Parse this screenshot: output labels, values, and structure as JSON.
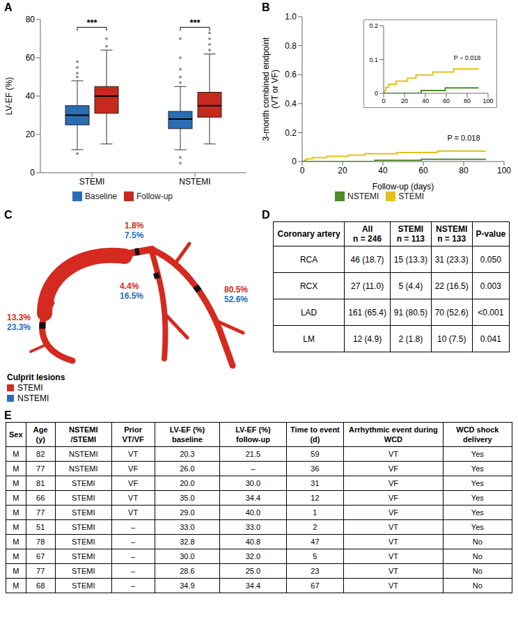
{
  "chart_data": [
    {
      "panel": "A",
      "type": "box",
      "y_label": "LV-EF (%)",
      "categories": [
        "STEMI",
        "NSTEMI"
      ],
      "ylim": [
        0,
        80
      ],
      "yticks": [
        0,
        20,
        40,
        60,
        80
      ],
      "legend": "bottom",
      "significance": [
        "***",
        "***"
      ],
      "series": [
        {
          "name": "Baseline",
          "color": "#2a6db5",
          "boxes": [
            {
              "whisker_low": 12,
              "q1": 25,
              "median": 30,
              "q3": 35,
              "whisker_high": 48,
              "outliers": [
                10,
                50,
                52,
                55,
                58
              ]
            },
            {
              "whisker_low": 12,
              "q1": 23,
              "median": 28,
              "q3": 32,
              "whisker_high": 45,
              "outliers": [
                5,
                8,
                47,
                50,
                54,
                60,
                70
              ]
            }
          ]
        },
        {
          "name": "Follow-up",
          "color": "#c62a1f",
          "boxes": [
            {
              "whisker_low": 15,
              "q1": 31,
              "median": 40,
              "q3": 45,
              "whisker_high": 64,
              "outliers": [
                66,
                70
              ]
            },
            {
              "whisker_low": 15,
              "q1": 29,
              "median": 35,
              "q3": 42,
              "whisker_high": 62,
              "outliers": [
                64,
                67,
                70,
                73
              ]
            }
          ]
        }
      ]
    },
    {
      "panel": "B",
      "type": "line",
      "x_label": "Follow-up (days)",
      "y_label": "3-month combined endpoint (VT or VF)",
      "xlim": [
        0,
        100
      ],
      "xticks": [
        0,
        20,
        40,
        60,
        80,
        100
      ],
      "ylim": [
        0,
        1
      ],
      "yticks": [
        0,
        0.2,
        0.4,
        0.6,
        0.8,
        {
          "value": 1,
          "label": "1.0"
        }
      ],
      "line_style": "step",
      "legend": "bottom",
      "annotation": "P = 0.018",
      "series": [
        {
          "name": "STEMI",
          "color": "#e3c21a",
          "x": [
            0,
            1,
            2,
            5,
            12,
            23,
            31,
            47,
            67,
            91
          ],
          "values": [
            0,
            0.009,
            0.018,
            0.027,
            0.036,
            0.045,
            0.054,
            0.063,
            0.072,
            0.072
          ]
        },
        {
          "name": "NSTEMI",
          "color": "#4e8a2c",
          "x": [
            0,
            36,
            59,
            91
          ],
          "values": [
            0,
            0.008,
            0.016,
            0.016
          ]
        }
      ],
      "inset": {
        "xlim": [
          0,
          100
        ],
        "xticks": [
          0,
          20,
          40,
          60,
          80,
          100
        ],
        "ylim": [
          0,
          0.2
        ],
        "yticks": [
          0,
          0.1,
          0.2
        ],
        "annotation": "P = 0.018"
      }
    }
  ],
  "panel_c": {
    "panel": "C",
    "legend_title": "Culprit lesions",
    "groups": [
      {
        "name": "STEMI",
        "color": "#d42a20"
      },
      {
        "name": "NSTEMI",
        "color": "#2a6db5"
      }
    ],
    "lesions": [
      {
        "stemi": "1.8%",
        "nstemi": "7.5%"
      },
      {
        "stemi": "4.4%",
        "nstemi": "16.5%"
      },
      {
        "stemi": "80.5%",
        "nstemi": "52.6%"
      },
      {
        "stemi": "13.3%",
        "nstemi": "23.3%"
      }
    ]
  },
  "panel_d": {
    "panel": "D",
    "columns": [
      {
        "title": "Coronary artery"
      },
      {
        "title": "All",
        "subtitle": "n = 246"
      },
      {
        "title": "STEMI",
        "subtitle": "n = 113"
      },
      {
        "title": "NSTEMI",
        "subtitle": "n = 133"
      },
      {
        "title": "P-value"
      }
    ],
    "rows": [
      [
        "RCA",
        "46 (18.7)",
        "15 (13.3)",
        "31 (23.3)",
        "0.050"
      ],
      [
        "RCX",
        "27 (11.0)",
        "5 (4.4)",
        "22 (16.5)",
        "0.003"
      ],
      [
        "LAD",
        "161 (65.4)",
        "91 (80.5)",
        "70 (52.6)",
        "<0.001"
      ],
      [
        "LM",
        "12 (4.9)",
        "2 (1.8)",
        "10 (7.5)",
        "0.041"
      ]
    ]
  },
  "panel_e": {
    "panel": "E",
    "columns": [
      "Sex",
      "Age (y)",
      "NSTEMI /STEMI",
      "Prior VT/VF",
      "LV-EF (%) baseline",
      "LV-EF (%) follow-up",
      "Time to event (d)",
      "Arrhythmic event during WCD",
      "WCD shock delivery"
    ],
    "rows": [
      [
        "M",
        "82",
        "NSTEMI",
        "VT",
        "20.3",
        "21.5",
        "59",
        "VT",
        "Yes"
      ],
      [
        "M",
        "77",
        "NSTEMI",
        "VF",
        "26.0",
        "–",
        "36",
        "VF",
        "Yes"
      ],
      [
        "M",
        "81",
        "STEMI",
        "VF",
        "20.0",
        "30.0",
        "31",
        "VF",
        "Yes"
      ],
      [
        "M",
        "66",
        "STEMI",
        "VT",
        "35.0",
        "34.4",
        "12",
        "VF",
        "Yes"
      ],
      [
        "M",
        "77",
        "STEMI",
        "VT",
        "29.0",
        "40.0",
        "1",
        "VF",
        "Yes"
      ],
      [
        "M",
        "51",
        "STEMI",
        "–",
        "33.0",
        "33.0",
        "2",
        "VT",
        "Yes"
      ],
      [
        "M",
        "78",
        "STEMI",
        "–",
        "32.8",
        "40.8",
        "47",
        "VT",
        "No"
      ],
      [
        "M",
        "67",
        "STEMI",
        "–",
        "30.0",
        "32.0",
        "5",
        "VT",
        "No"
      ],
      [
        "M",
        "77",
        "STEMI",
        "–",
        "28.6",
        "25.0",
        "23",
        "VT",
        "No"
      ],
      [
        "M",
        "68",
        "STEMI",
        "–",
        "34.9",
        "34.4",
        "67",
        "VT",
        "No"
      ]
    ]
  }
}
